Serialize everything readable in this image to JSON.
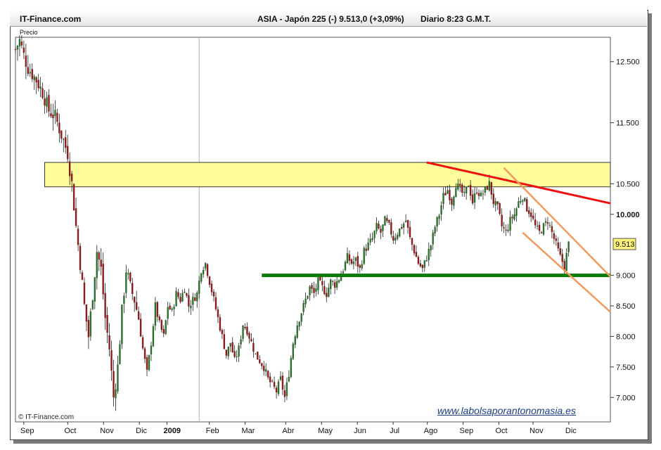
{
  "header": {
    "site": "IT-Finance.com",
    "instrument": "ASIA - Japón 225 (-)   9.513,0 (+3,09%)",
    "period": "Diario  8:23 G.M.T."
  },
  "price_label": "Precio",
  "copyright": "© IT-Finance.com",
  "watermark": "www.labolsaporantonomasia.es",
  "colors": {
    "candle_up": "#2d6e2d",
    "candle_down": "#8a1c1c",
    "band": "#fffc9c",
    "resistance": "#ee1111",
    "support": "#0a7a0a",
    "channel": "#f39a5a"
  },
  "chart_data": {
    "type": "candlestick",
    "ylabel": "Precio",
    "ylim": [
      6600,
      12900
    ],
    "y_ticks": [
      {
        "value": 12500,
        "label": "12.500"
      },
      {
        "value": 11500,
        "label": "11.500"
      },
      {
        "value": 10500,
        "label": "10.500"
      },
      {
        "value": 10000,
        "label": "10.000"
      },
      {
        "value": 9000,
        "label": "9.000"
      },
      {
        "value": 8500,
        "label": "8.500"
      },
      {
        "value": 8000,
        "label": "8.000"
      },
      {
        "value": 7500,
        "label": "7.500"
      },
      {
        "value": 7000,
        "label": "7.000"
      }
    ],
    "x_ticks": [
      "Sep",
      "Oct",
      "Nov",
      "Dic",
      "2009",
      "Feb",
      "Mar",
      "Abr",
      "May",
      "Jun",
      "Jul",
      "Ago",
      "Sep",
      "Oct",
      "Nov",
      "Dic"
    ],
    "last_price": "9.513",
    "price_path": [
      [
        0,
        12700
      ],
      [
        2,
        12850
      ],
      [
        4,
        12600
      ],
      [
        6,
        12400
      ],
      [
        8,
        12300
      ],
      [
        10,
        12200
      ],
      [
        13,
        12000
      ],
      [
        16,
        11700
      ],
      [
        19,
        11600
      ],
      [
        22,
        11300
      ],
      [
        25,
        11000
      ],
      [
        27,
        10500
      ],
      [
        29,
        9800
      ],
      [
        31,
        9200
      ],
      [
        33,
        8500
      ],
      [
        35,
        8000
      ],
      [
        37,
        8700
      ],
      [
        39,
        9400
      ],
      [
        41,
        9100
      ],
      [
        43,
        8300
      ],
      [
        45,
        7800
      ],
      [
        47,
        7000
      ],
      [
        49,
        7500
      ],
      [
        51,
        8400
      ],
      [
        53,
        9100
      ],
      [
        55,
        8800
      ],
      [
        57,
        8600
      ],
      [
        59,
        8300
      ],
      [
        61,
        7800
      ],
      [
        63,
        7400
      ],
      [
        65,
        7900
      ],
      [
        67,
        8500
      ],
      [
        69,
        8200
      ],
      [
        71,
        8000
      ],
      [
        73,
        8500
      ],
      [
        75,
        8400
      ],
      [
        77,
        8700
      ],
      [
        79,
        8600
      ],
      [
        81,
        8800
      ],
      [
        83,
        8500
      ],
      [
        85,
        8600
      ],
      [
        87,
        8700
      ],
      [
        89,
        9100
      ],
      [
        91,
        9200
      ],
      [
        93,
        8900
      ],
      [
        95,
        8600
      ],
      [
        97,
        8300
      ],
      [
        99,
        8000
      ],
      [
        101,
        7700
      ],
      [
        103,
        7900
      ],
      [
        105,
        7600
      ],
      [
        107,
        7800
      ],
      [
        109,
        8200
      ],
      [
        111,
        8100
      ],
      [
        113,
        7900
      ],
      [
        115,
        7700
      ],
      [
        117,
        7600
      ],
      [
        119,
        7500
      ],
      [
        121,
        7300
      ],
      [
        123,
        7200
      ],
      [
        125,
        7100
      ],
      [
        127,
        7300
      ],
      [
        129,
        7000
      ],
      [
        131,
        7400
      ],
      [
        133,
        7900
      ],
      [
        135,
        8200
      ],
      [
        137,
        8400
      ],
      [
        139,
        8600
      ],
      [
        141,
        8800
      ],
      [
        143,
        8700
      ],
      [
        145,
        8900
      ],
      [
        147,
        8800
      ],
      [
        149,
        8700
      ],
      [
        151,
        8900
      ],
      [
        153,
        8850
      ],
      [
        155,
        8950
      ],
      [
        157,
        9100
      ],
      [
        159,
        9300
      ],
      [
        161,
        9200
      ],
      [
        163,
        9250
      ],
      [
        165,
        9100
      ],
      [
        167,
        9400
      ],
      [
        169,
        9500
      ],
      [
        171,
        9600
      ],
      [
        173,
        9800
      ],
      [
        175,
        9700
      ],
      [
        177,
        9900
      ],
      [
        179,
        9800
      ],
      [
        181,
        9600
      ],
      [
        183,
        9700
      ],
      [
        185,
        9800
      ],
      [
        187,
        9900
      ],
      [
        189,
        9600
      ],
      [
        191,
        9400
      ],
      [
        193,
        9200
      ],
      [
        195,
        9100
      ],
      [
        197,
        9300
      ],
      [
        199,
        9500
      ],
      [
        201,
        9800
      ],
      [
        203,
        10000
      ],
      [
        205,
        10300
      ],
      [
        207,
        10400
      ],
      [
        209,
        10200
      ],
      [
        211,
        10500
      ],
      [
        213,
        10400
      ],
      [
        215,
        10300
      ],
      [
        217,
        10500
      ],
      [
        219,
        10200
      ],
      [
        221,
        10400
      ],
      [
        223,
        10300
      ],
      [
        225,
        10400
      ],
      [
        227,
        10500
      ],
      [
        229,
        10200
      ],
      [
        231,
        10100
      ],
      [
        233,
        9800
      ],
      [
        235,
        9700
      ],
      [
        237,
        9900
      ],
      [
        239,
        10000
      ],
      [
        241,
        10200
      ],
      [
        243,
        10300
      ],
      [
        245,
        10100
      ],
      [
        247,
        10000
      ],
      [
        249,
        9800
      ],
      [
        251,
        9700
      ],
      [
        253,
        9800
      ],
      [
        255,
        9900
      ],
      [
        257,
        9700
      ],
      [
        259,
        9500
      ],
      [
        261,
        9300
      ],
      [
        263,
        9150
      ],
      [
        265,
        9513
      ]
    ],
    "annotations": [
      {
        "type": "band",
        "from": 10450,
        "to": 10850,
        "x0": 14,
        "x1": 285
      },
      {
        "type": "line",
        "name": "resistance",
        "x0": 197,
        "y0": 10850,
        "x1": 285,
        "y1": 10180
      },
      {
        "type": "line",
        "name": "support",
        "x0": 118,
        "y0": 9000,
        "x1": 285,
        "y1": 9000
      },
      {
        "type": "line",
        "name": "channel-upper",
        "x0": 234,
        "y0": 10760,
        "x1": 285,
        "y1": 8980
      },
      {
        "type": "line",
        "name": "channel-lower",
        "x0": 243,
        "y0": 9700,
        "x1": 285,
        "y1": 8400
      }
    ]
  }
}
